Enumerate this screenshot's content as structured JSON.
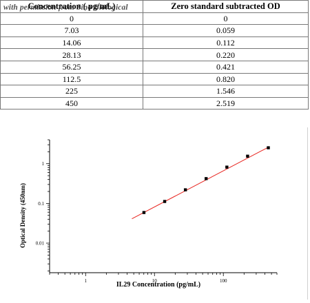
{
  "table": {
    "headers": [
      "Concentration ( pg/mL)",
      "Zero standard subtracted OD"
    ],
    "watermark": "with permission from Sino Biological",
    "rows": [
      [
        "0",
        "0"
      ],
      [
        "7.03",
        "0.059"
      ],
      [
        "14.06",
        "0.112"
      ],
      [
        "28.13",
        "0.220"
      ],
      [
        "56.25",
        "0.421"
      ],
      [
        "112.5",
        "0.820"
      ],
      [
        "225",
        "1.546"
      ],
      [
        "450",
        "2.519"
      ]
    ]
  },
  "chart_data": {
    "type": "scatter",
    "xlabel": "IL29 Concentration (pg/mL)",
    "ylabel": "Optical Density (450nm)",
    "xscale": "log",
    "yscale": "log",
    "xlim": [
      0.3,
      600
    ],
    "ylim": [
      0.0018,
      4
    ],
    "xticks": [
      1,
      10,
      100
    ],
    "xtick_labels": [
      "1",
      "10",
      "100"
    ],
    "yticks": [
      0.01,
      0.1,
      1
    ],
    "ytick_labels": [
      "0.01",
      "0.1",
      "1"
    ],
    "grid": false,
    "points": [
      {
        "x": 7.03,
        "y": 0.059
      },
      {
        "x": 14.06,
        "y": 0.112
      },
      {
        "x": 28.13,
        "y": 0.22
      },
      {
        "x": 56.25,
        "y": 0.421
      },
      {
        "x": 112.5,
        "y": 0.82
      },
      {
        "x": 225,
        "y": 1.546
      },
      {
        "x": 450,
        "y": 2.519
      }
    ],
    "fit_line": {
      "x": [
        4.7,
        450
      ],
      "y": [
        0.041,
        2.6
      ],
      "color": "#e8241f"
    },
    "marker_color": "#000000"
  }
}
